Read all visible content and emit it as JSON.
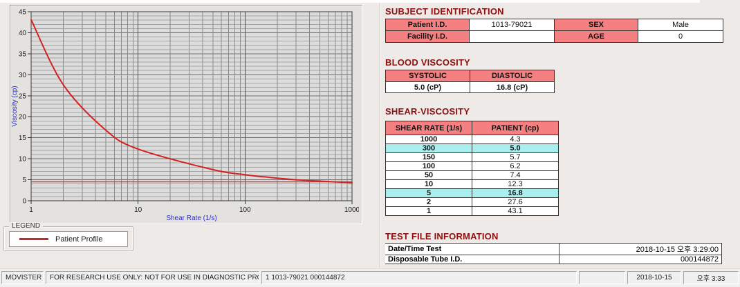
{
  "chart": {
    "ylabel": "Viscosity (cp)",
    "xlabel": "Shear Rate (1/s)",
    "y_ticks": [
      0,
      5,
      10,
      15,
      20,
      25,
      30,
      35,
      40,
      45
    ],
    "x_ticks": [
      1,
      10,
      100,
      1000
    ],
    "axis_label_color": "#2a2acc",
    "line_color": "#d32020",
    "legend": {
      "group_title": "LEGEND",
      "entries": [
        {
          "label": "Patient Profile",
          "color": "#c22a2a"
        }
      ]
    }
  },
  "chart_data": {
    "type": "line",
    "x_scale": "log",
    "x": [
      1,
      2,
      5,
      10,
      50,
      100,
      150,
      300,
      1000
    ],
    "series": [
      {
        "name": "Patient Profile",
        "values": [
          43.1,
          27.6,
          16.8,
          12.3,
          7.4,
          6.2,
          5.7,
          5.0,
          4.3
        ]
      }
    ],
    "baseline_value": 4.5,
    "title": "",
    "xlabel": "Shear Rate (1/s)",
    "ylabel": "Viscosity (cp)",
    "xlim": [
      1,
      1000
    ],
    "ylim": [
      0,
      45
    ],
    "grid": true,
    "legend_position": "below-left"
  },
  "subject_identification": {
    "title": "SUBJECT IDENTIFICATION",
    "rows": [
      {
        "label1": "Patient I.D.",
        "value1": "1013-79021",
        "label2": "SEX",
        "value2": "Male"
      },
      {
        "label1": "Facility I.D.",
        "value1": "",
        "label2": "AGE",
        "value2": "0"
      }
    ]
  },
  "blood_viscosity": {
    "title": "BLOOD VISCOSITY",
    "headers": [
      "SYSTOLIC",
      "DIASTOLIC"
    ],
    "values": [
      "5.0 (cP)",
      "16.8 (cP)"
    ]
  },
  "shear_viscosity": {
    "title": "SHEAR-VISCOSITY",
    "headers": [
      "SHEAR RATE (1/s)",
      "PATIENT (cp)"
    ],
    "rows": [
      {
        "rate": "1000",
        "value": "4.3",
        "highlight": false
      },
      {
        "rate": "300",
        "value": "5.0",
        "highlight": true
      },
      {
        "rate": "150",
        "value": "5.7",
        "highlight": false
      },
      {
        "rate": "100",
        "value": "6.2",
        "highlight": false
      },
      {
        "rate": "50",
        "value": "7.4",
        "highlight": false
      },
      {
        "rate": "10",
        "value": "12.3",
        "highlight": false
      },
      {
        "rate": "5",
        "value": "16.8",
        "highlight": true
      },
      {
        "rate": "2",
        "value": "27.6",
        "highlight": false
      },
      {
        "rate": "1",
        "value": "43.1",
        "highlight": false
      }
    ]
  },
  "test_file_information": {
    "title": "TEST FILE INFORMATION",
    "rows": [
      {
        "label": "Date/Time Test",
        "value": "2018-10-15  오후 3:29:00"
      },
      {
        "label": "Disposable Tube I.D.",
        "value": "000144872"
      }
    ]
  },
  "status_bar": {
    "panels": [
      {
        "text": "MOVISTER",
        "align": "left"
      },
      {
        "text": "FOR RESEARCH USE ONLY: NOT FOR USE IN DIAGNOSTIC PROCEDURES",
        "align": "left"
      },
      {
        "text": "1  1013-79021  000144872",
        "align": "left"
      },
      {
        "text": "",
        "align": "left"
      },
      {
        "text": "2018-10-15",
        "align": "center"
      },
      {
        "text": "오후 3:33",
        "align": "center"
      }
    ]
  }
}
